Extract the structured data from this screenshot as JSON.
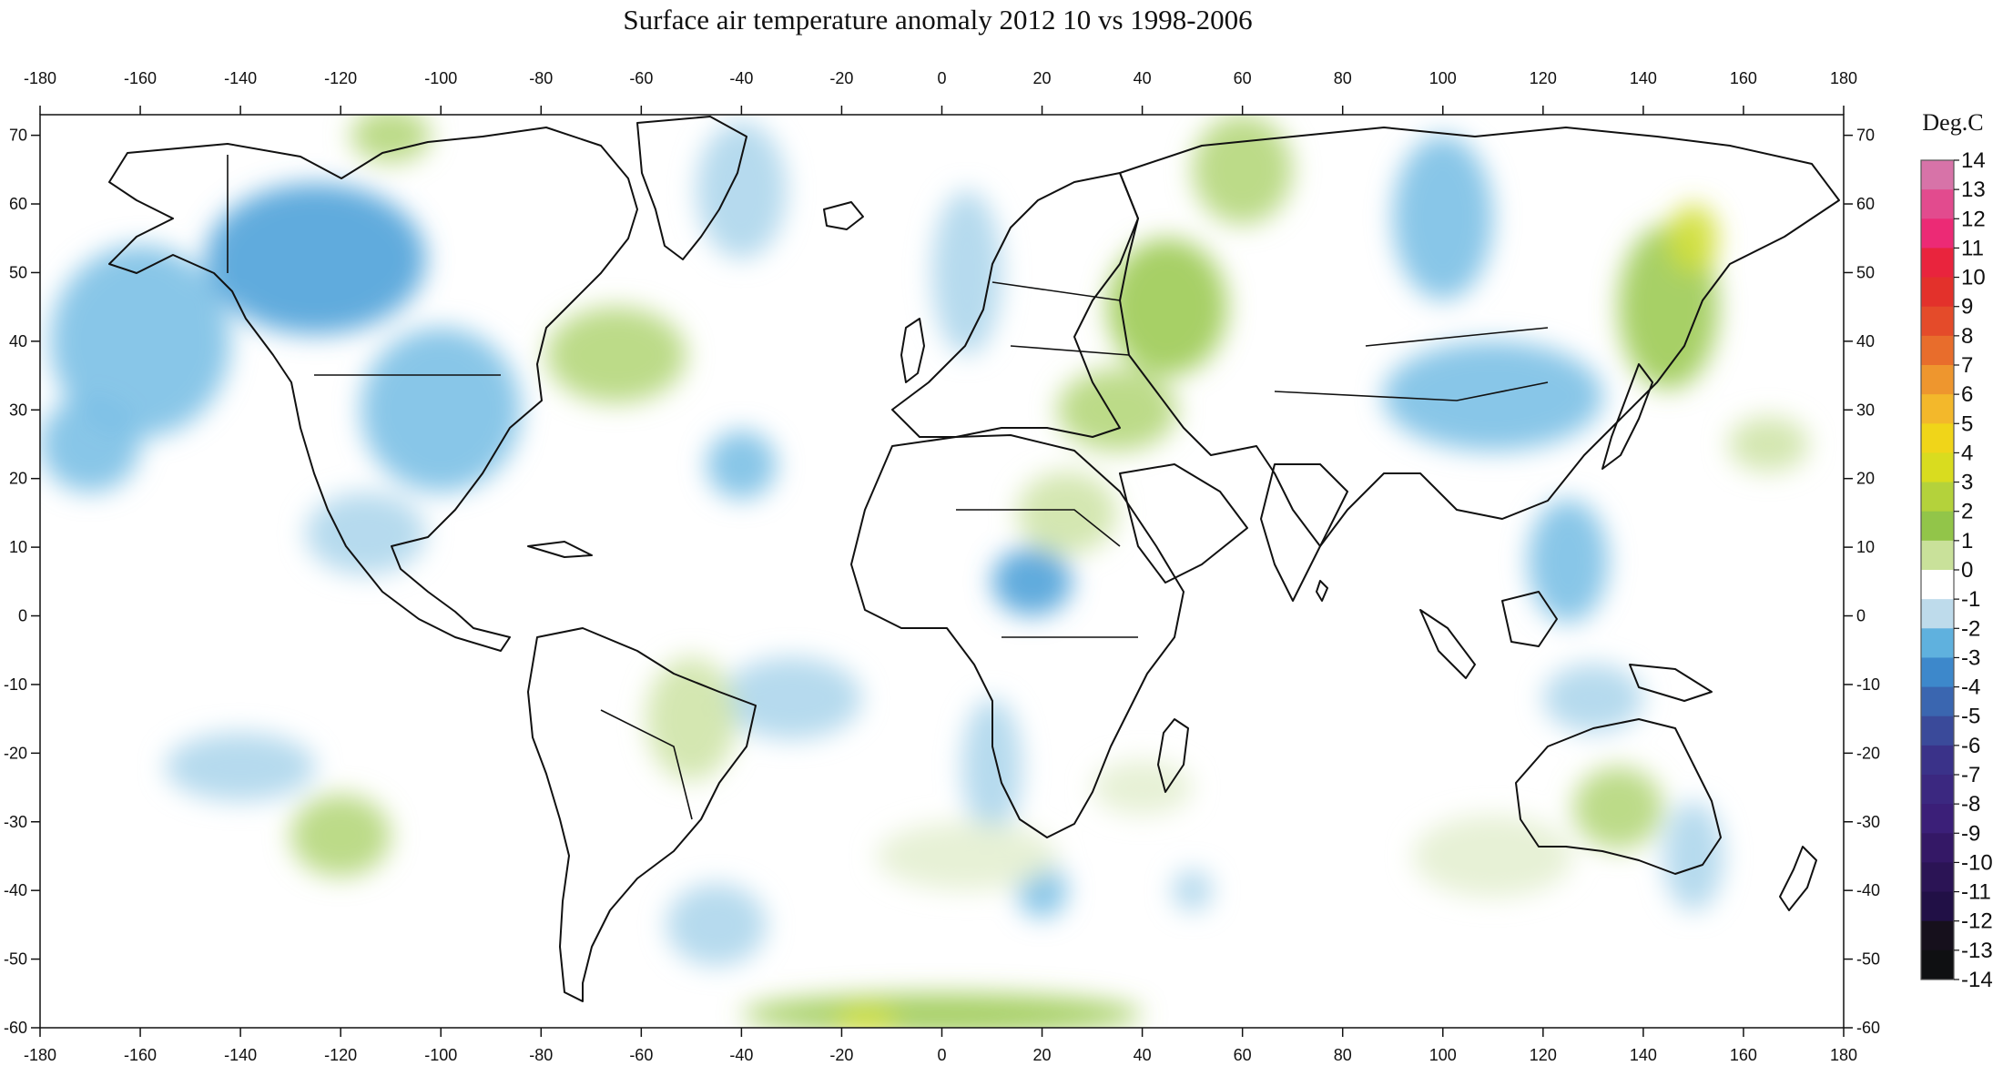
{
  "title": "Surface air temperature anomaly 2012 10 vs 1998-2006",
  "map": {
    "projection": "equirectangular",
    "lon_range": [
      -180,
      180
    ],
    "lat_range": [
      -60,
      73
    ],
    "lon_ticks": [
      -180,
      -160,
      -140,
      -120,
      -100,
      -80,
      -60,
      -40,
      -20,
      0,
      20,
      40,
      60,
      80,
      100,
      120,
      140,
      160,
      180
    ],
    "lat_ticks": [
      70,
      60,
      50,
      40,
      30,
      20,
      10,
      0,
      -10,
      -20,
      -30,
      -40,
      -50,
      -60
    ],
    "lon_tick_labels": [
      "-180",
      "-160",
      "-140",
      "-120",
      "-100",
      "-80",
      "-60",
      "-40",
      "-20",
      "0",
      "20",
      "40",
      "60",
      "80",
      "100",
      "120",
      "140",
      "160",
      "180"
    ],
    "lat_tick_labels": [
      "70",
      "60",
      "50",
      "40",
      "30",
      "20",
      "10",
      "0",
      "-10",
      "-20",
      "-30",
      "-40",
      "-50",
      "-60"
    ],
    "anomaly_regions": [
      {
        "lon": -125,
        "lat": 52,
        "rx": 22,
        "ry": 11,
        "value": -2.3
      },
      {
        "lon": -160,
        "lat": 40,
        "rx": 18,
        "ry": 14,
        "value": -1.4
      },
      {
        "lon": -170,
        "lat": 25,
        "rx": 10,
        "ry": 7,
        "value": -1.5
      },
      {
        "lon": -100,
        "lat": 30,
        "rx": 16,
        "ry": 12,
        "value": -1.4
      },
      {
        "lon": -115,
        "lat": 12,
        "rx": 12,
        "ry": 6,
        "value": -1.1
      },
      {
        "lon": -40,
        "lat": 22,
        "rx": 7,
        "ry": 5,
        "value": -1.6
      },
      {
        "lon": -40,
        "lat": 62,
        "rx": 9,
        "ry": 10,
        "value": -1.2
      },
      {
        "lon": 5,
        "lat": 50,
        "rx": 7,
        "ry": 12,
        "value": -1.1
      },
      {
        "lon": 18,
        "lat": 5,
        "rx": 8,
        "ry": 5,
        "value": -1.8
      },
      {
        "lon": -30,
        "lat": -12,
        "rx": 14,
        "ry": 6,
        "value": -1.2
      },
      {
        "lon": 10,
        "lat": -22,
        "rx": 6,
        "ry": 10,
        "value": -1.2
      },
      {
        "lon": 100,
        "lat": 58,
        "rx": 10,
        "ry": 12,
        "value": -1.3
      },
      {
        "lon": 110,
        "lat": 32,
        "rx": 22,
        "ry": 8,
        "value": -1.5
      },
      {
        "lon": 125,
        "lat": 8,
        "rx": 8,
        "ry": 9,
        "value": -1.6
      },
      {
        "lon": 130,
        "lat": -12,
        "rx": 10,
        "ry": 5,
        "value": -1.2
      },
      {
        "lon": -140,
        "lat": -22,
        "rx": 15,
        "ry": 5,
        "value": -1.0
      },
      {
        "lon": -45,
        "lat": -45,
        "rx": 10,
        "ry": 6,
        "value": -1.0
      },
      {
        "lon": 20,
        "lat": -40,
        "rx": 5,
        "ry": 4,
        "value": -1.3
      },
      {
        "lon": 50,
        "lat": -40,
        "rx": 4,
        "ry": 3,
        "value": -1.2
      },
      {
        "lon": 150,
        "lat": -35,
        "rx": 6,
        "ry": 8,
        "value": -1.1
      },
      {
        "lon": 145,
        "lat": 45,
        "rx": 10,
        "ry": 12,
        "value": 1.8
      },
      {
        "lon": 150,
        "lat": 55,
        "rx": 5,
        "ry": 5,
        "value": 3.0
      },
      {
        "lon": 45,
        "lat": 45,
        "rx": 12,
        "ry": 10,
        "value": 1.8
      },
      {
        "lon": 35,
        "lat": 30,
        "rx": 12,
        "ry": 6,
        "value": 1.4
      },
      {
        "lon": 25,
        "lat": 15,
        "rx": 10,
        "ry": 6,
        "value": 1.1
      },
      {
        "lon": 60,
        "lat": 65,
        "rx": 10,
        "ry": 8,
        "value": 1.3
      },
      {
        "lon": -65,
        "lat": 38,
        "rx": 14,
        "ry": 7,
        "value": 1.5
      },
      {
        "lon": -110,
        "lat": 70,
        "rx": 8,
        "ry": 4,
        "value": 1.3
      },
      {
        "lon": -120,
        "lat": -32,
        "rx": 10,
        "ry": 6,
        "value": 1.3
      },
      {
        "lon": -50,
        "lat": -15,
        "rx": 9,
        "ry": 9,
        "value": 1.2
      },
      {
        "lon": 135,
        "lat": -28,
        "rx": 9,
        "ry": 6,
        "value": 1.3
      },
      {
        "lon": 165,
        "lat": 25,
        "rx": 8,
        "ry": 4,
        "value": 1.1
      },
      {
        "lon": 0,
        "lat": -58,
        "rx": 40,
        "ry": 3,
        "value": 1.8
      },
      {
        "lon": -15,
        "lat": -59,
        "rx": 6,
        "ry": 2,
        "value": 3.0
      },
      {
        "lon": 40,
        "lat": -25,
        "rx": 10,
        "ry": 4,
        "value": 0.8
      },
      {
        "lon": 5,
        "lat": -35,
        "rx": 18,
        "ry": 5,
        "value": 0.7
      },
      {
        "lon": 110,
        "lat": -35,
        "rx": 16,
        "ry": 6,
        "value": 0.6
      }
    ]
  },
  "colorbar": {
    "units": "Deg.C",
    "levels": [
      14,
      13,
      12,
      11,
      10,
      9,
      8,
      7,
      6,
      5,
      4,
      3,
      2,
      1,
      0,
      -1,
      -2,
      -3,
      -4,
      -5,
      -6,
      -7,
      -8,
      -9,
      -10,
      -11,
      -12,
      -13,
      -14
    ],
    "labels": [
      "14",
      "13",
      "12",
      "11",
      "10",
      "9",
      "8",
      "7",
      "6",
      "5",
      "4",
      "3",
      "2",
      "1",
      "0",
      "-1",
      "-2",
      "-3",
      "-4",
      "-5",
      "-6",
      "-7",
      "-8",
      "-9",
      "-10",
      "-11",
      "-12",
      "-13",
      "-14"
    ],
    "colors": [
      "#d773a8",
      "#e24b8e",
      "#ec2a75",
      "#e9243d",
      "#e3312b",
      "#e44b2a",
      "#e86d2c",
      "#ee962e",
      "#f3b82b",
      "#f0d519",
      "#d9dc1f",
      "#b4d23b",
      "#92c549",
      "#c9e19a",
      "#ffffff",
      "#bedbeb",
      "#5fb1de",
      "#3d88cb",
      "#3a66b0",
      "#3a4a9a",
      "#3a3289",
      "#3b2880",
      "#3b1f78",
      "#341866",
      "#2b1455",
      "#211046",
      "#16101c",
      "#0f1012"
    ]
  },
  "chart_data": {
    "type": "heatmap",
    "title": "Surface air temperature anomaly 2012 10 vs 1998-2006",
    "xlabel": "",
    "ylabel": "",
    "xlim": [
      -180,
      180
    ],
    "ylim": [
      -60,
      73
    ],
    "colorbar_units": "Deg.C",
    "colorbar_range": [
      -14,
      14
    ]
  }
}
